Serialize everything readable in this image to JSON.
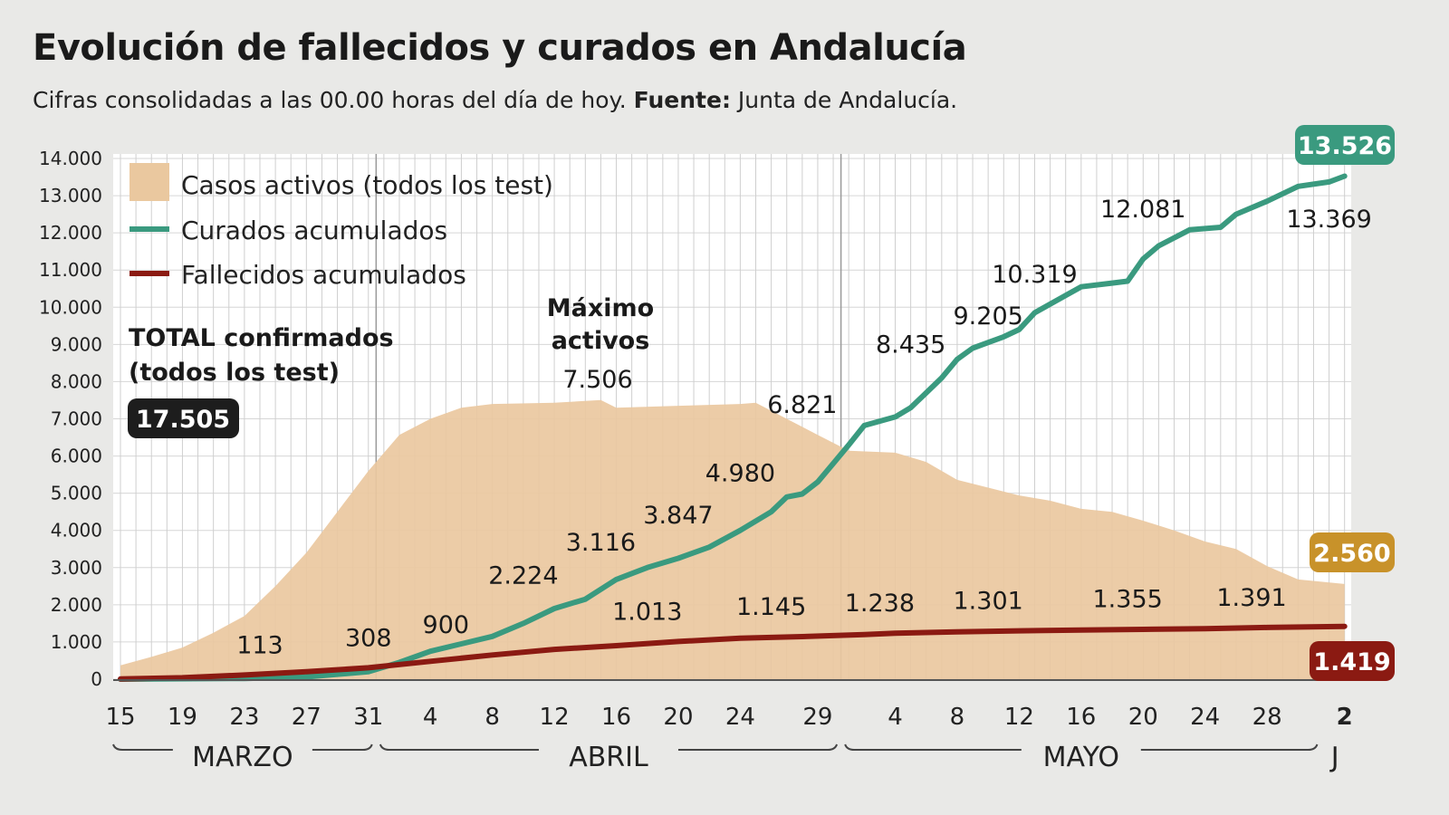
{
  "title": "Evolución de fallecidos y curados en Andalucía",
  "subtitle": {
    "text": "Cifras consolidadas a las 00.00 horas del día de hoy.",
    "source_label": "Fuente:",
    "source": "Junta de Andalucía."
  },
  "chart_data": {
    "type": "area+line",
    "title": "Evolución de fallecidos y curados en Andalucía",
    "ylim": [
      0,
      14000
    ],
    "y_ticks": [
      "0",
      "1.000",
      "2.000",
      "3.000",
      "4.000",
      "5.000",
      "6.000",
      "7.000",
      "8.000",
      "9.000",
      "10.000",
      "11.000",
      "12.000",
      "13.000",
      "14.000"
    ],
    "y_tick_values": [
      0,
      1000,
      2000,
      3000,
      4000,
      5000,
      6000,
      7000,
      8000,
      9000,
      10000,
      11000,
      12000,
      13000,
      14000
    ],
    "x_range": [
      "03-15",
      "06-02"
    ],
    "x_ticks": [
      {
        "date": "03-15",
        "label": "15"
      },
      {
        "date": "03-19",
        "label": "19"
      },
      {
        "date": "03-23",
        "label": "23"
      },
      {
        "date": "03-27",
        "label": "27"
      },
      {
        "date": "03-31",
        "label": "31"
      },
      {
        "date": "04-04",
        "label": "4"
      },
      {
        "date": "04-08",
        "label": "8"
      },
      {
        "date": "04-12",
        "label": "12"
      },
      {
        "date": "04-16",
        "label": "16"
      },
      {
        "date": "04-20",
        "label": "20"
      },
      {
        "date": "04-24",
        "label": "24"
      },
      {
        "date": "04-29",
        "label": "29"
      },
      {
        "date": "05-04",
        "label": "4"
      },
      {
        "date": "05-08",
        "label": "8"
      },
      {
        "date": "05-12",
        "label": "12"
      },
      {
        "date": "05-16",
        "label": "16"
      },
      {
        "date": "05-20",
        "label": "20"
      },
      {
        "date": "05-24",
        "label": "24"
      },
      {
        "date": "05-28",
        "label": "28"
      },
      {
        "date": "06-02",
        "label": "2",
        "bold": true
      }
    ],
    "months": [
      {
        "label": "MARZO",
        "from": "03-15",
        "to": "03-31"
      },
      {
        "label": "ABRIL",
        "from": "04-01",
        "to": "04-30"
      },
      {
        "label": "MAYO",
        "from": "05-01",
        "to": "05-31"
      },
      {
        "label": "J",
        "from": "06-01",
        "to": "06-02"
      }
    ],
    "grid": true,
    "legend_position": "top-left",
    "series": [
      {
        "name": "Casos activos (todos los test)",
        "type": "area",
        "color": "#eac89f",
        "points": [
          [
            "03-15",
            370
          ],
          [
            "03-17",
            600
          ],
          [
            "03-19",
            850
          ],
          [
            "03-21",
            1250
          ],
          [
            "03-23",
            1700
          ],
          [
            "03-25",
            2500
          ],
          [
            "03-27",
            3400
          ],
          [
            "03-29",
            4500
          ],
          [
            "03-31",
            5600
          ],
          [
            "04-02",
            6570
          ],
          [
            "04-04",
            7000
          ],
          [
            "04-06",
            7300
          ],
          [
            "04-08",
            7400
          ],
          [
            "04-12",
            7430
          ],
          [
            "04-15",
            7506
          ],
          [
            "04-16",
            7300
          ],
          [
            "04-20",
            7350
          ],
          [
            "04-24",
            7400
          ],
          [
            "04-25",
            7430
          ],
          [
            "04-27",
            7000
          ],
          [
            "04-29",
            6570
          ],
          [
            "05-01",
            6140
          ],
          [
            "05-04",
            6090
          ],
          [
            "05-06",
            5840
          ],
          [
            "05-08",
            5360
          ],
          [
            "05-10",
            5150
          ],
          [
            "05-12",
            4940
          ],
          [
            "05-14",
            4800
          ],
          [
            "05-16",
            4580
          ],
          [
            "05-18",
            4500
          ],
          [
            "05-20",
            4260
          ],
          [
            "05-22",
            4000
          ],
          [
            "05-24",
            3700
          ],
          [
            "05-26",
            3500
          ],
          [
            "05-28",
            3040
          ],
          [
            "05-30",
            2680
          ],
          [
            "06-02",
            2560
          ]
        ]
      },
      {
        "name": "Curados acumulados",
        "type": "line",
        "color": "#3a9a7f",
        "points": [
          [
            "03-15",
            0
          ],
          [
            "03-23",
            20
          ],
          [
            "03-27",
            60
          ],
          [
            "03-31",
            200
          ],
          [
            "04-02",
            450
          ],
          [
            "04-04",
            750
          ],
          [
            "04-06",
            950
          ],
          [
            "04-08",
            1150
          ],
          [
            "04-10",
            1500
          ],
          [
            "04-12",
            1900
          ],
          [
            "04-14",
            2150
          ],
          [
            "04-16",
            2680
          ],
          [
            "04-18",
            3000
          ],
          [
            "04-20",
            3250
          ],
          [
            "04-22",
            3550
          ],
          [
            "04-24",
            4000
          ],
          [
            "04-26",
            4500
          ],
          [
            "04-27",
            4900
          ],
          [
            "04-28",
            4980
          ],
          [
            "04-29",
            5300
          ],
          [
            "04-30",
            5800
          ],
          [
            "05-01",
            6300
          ],
          [
            "05-02",
            6821
          ],
          [
            "05-04",
            7050
          ],
          [
            "05-05",
            7300
          ],
          [
            "05-06",
            7700
          ],
          [
            "05-07",
            8100
          ],
          [
            "05-08",
            8600
          ],
          [
            "05-09",
            8900
          ],
          [
            "05-11",
            9205
          ],
          [
            "05-12",
            9400
          ],
          [
            "05-13",
            9850
          ],
          [
            "05-15",
            10319
          ],
          [
            "05-16",
            10550
          ],
          [
            "05-18",
            10650
          ],
          [
            "05-19",
            10700
          ],
          [
            "05-20",
            11300
          ],
          [
            "05-21",
            11650
          ],
          [
            "05-23",
            12081
          ],
          [
            "05-25",
            12150
          ],
          [
            "05-26",
            12500
          ],
          [
            "05-28",
            12850
          ],
          [
            "05-30",
            13250
          ],
          [
            "06-01",
            13369
          ],
          [
            "06-02",
            13526
          ]
        ]
      },
      {
        "name": "Fallecidos acumulados",
        "type": "line",
        "color": "#8b1a12",
        "points": [
          [
            "03-15",
            5
          ],
          [
            "03-19",
            40
          ],
          [
            "03-23",
            113
          ],
          [
            "03-27",
            200
          ],
          [
            "03-31",
            308
          ],
          [
            "04-04",
            480
          ],
          [
            "04-08",
            650
          ],
          [
            "04-12",
            800
          ],
          [
            "04-16",
            900
          ],
          [
            "04-20",
            1013
          ],
          [
            "04-24",
            1100
          ],
          [
            "04-28",
            1145
          ],
          [
            "05-02",
            1200
          ],
          [
            "05-04",
            1238
          ],
          [
            "05-08",
            1270
          ],
          [
            "05-12",
            1301
          ],
          [
            "05-16",
            1320
          ],
          [
            "05-20",
            1340
          ],
          [
            "05-24",
            1355
          ],
          [
            "05-28",
            1391
          ],
          [
            "06-02",
            1419
          ]
        ]
      }
    ],
    "annotations": [
      {
        "series": "Fallecidos acumulados",
        "text": "113",
        "date": "03-24",
        "value": 113
      },
      {
        "series": "Fallecidos acumulados",
        "text": "308",
        "date": "03-31",
        "value": 308
      },
      {
        "series": "Fallecidos acumulados",
        "text": "1.013",
        "date": "04-18",
        "value": 1013
      },
      {
        "series": "Fallecidos acumulados",
        "text": "1.145",
        "date": "04-26",
        "value": 1145
      },
      {
        "series": "Fallecidos acumulados",
        "text": "1.238",
        "date": "05-03",
        "value": 1238
      },
      {
        "series": "Fallecidos acumulados",
        "text": "1.301",
        "date": "05-10",
        "value": 1301
      },
      {
        "series": "Fallecidos acumulados",
        "text": "1.355",
        "date": "05-19",
        "value": 1355
      },
      {
        "series": "Fallecidos acumulados",
        "text": "1.391",
        "date": "05-27",
        "value": 1391
      },
      {
        "series": "Curados acumulados",
        "text": "900",
        "date": "04-05",
        "value": 900
      },
      {
        "series": "Curados acumulados",
        "text": "2.224",
        "date": "04-10",
        "value": 2224
      },
      {
        "series": "Curados acumulados",
        "text": "3.116",
        "date": "04-15",
        "value": 3116
      },
      {
        "series": "Curados acumulados",
        "text": "3.847",
        "date": "04-20",
        "value": 3847
      },
      {
        "series": "Curados acumulados",
        "text": "4.980",
        "date": "04-24",
        "value": 4980
      },
      {
        "series": "Curados acumulados",
        "text": "6.821",
        "date": "04-28",
        "value": 6821
      },
      {
        "series": "Curados acumulados",
        "text": "8.435",
        "date": "05-05",
        "value": 8435
      },
      {
        "series": "Curados acumulados",
        "text": "9.205",
        "date": "05-10",
        "value": 9205
      },
      {
        "series": "Curados acumulados",
        "text": "10.319",
        "date": "05-13",
        "value": 10319
      },
      {
        "series": "Curados acumulados",
        "text": "12.081",
        "date": "05-20",
        "value": 12081
      },
      {
        "series": "Curados acumulados",
        "text": "13.369",
        "date": "06-01",
        "value": 13369,
        "position": "below"
      }
    ],
    "max_active": {
      "line1": "Máximo",
      "line2": "activos",
      "value": "7.506",
      "date": "04-15"
    },
    "total_confirmed": {
      "line1": "TOTAL confirmados",
      "line2": "(todos los test)",
      "value": "17.505",
      "badge_color": "#1d1d1d"
    },
    "final_badges": [
      {
        "series": "Curados acumulados",
        "text": "13.526",
        "color": "#3a9a7f"
      },
      {
        "series": "Casos activos (todos los test)",
        "text": "2.560",
        "color": "#c8922a"
      },
      {
        "series": "Fallecidos acumulados",
        "text": "1.419",
        "color": "#8b1a12"
      }
    ]
  }
}
